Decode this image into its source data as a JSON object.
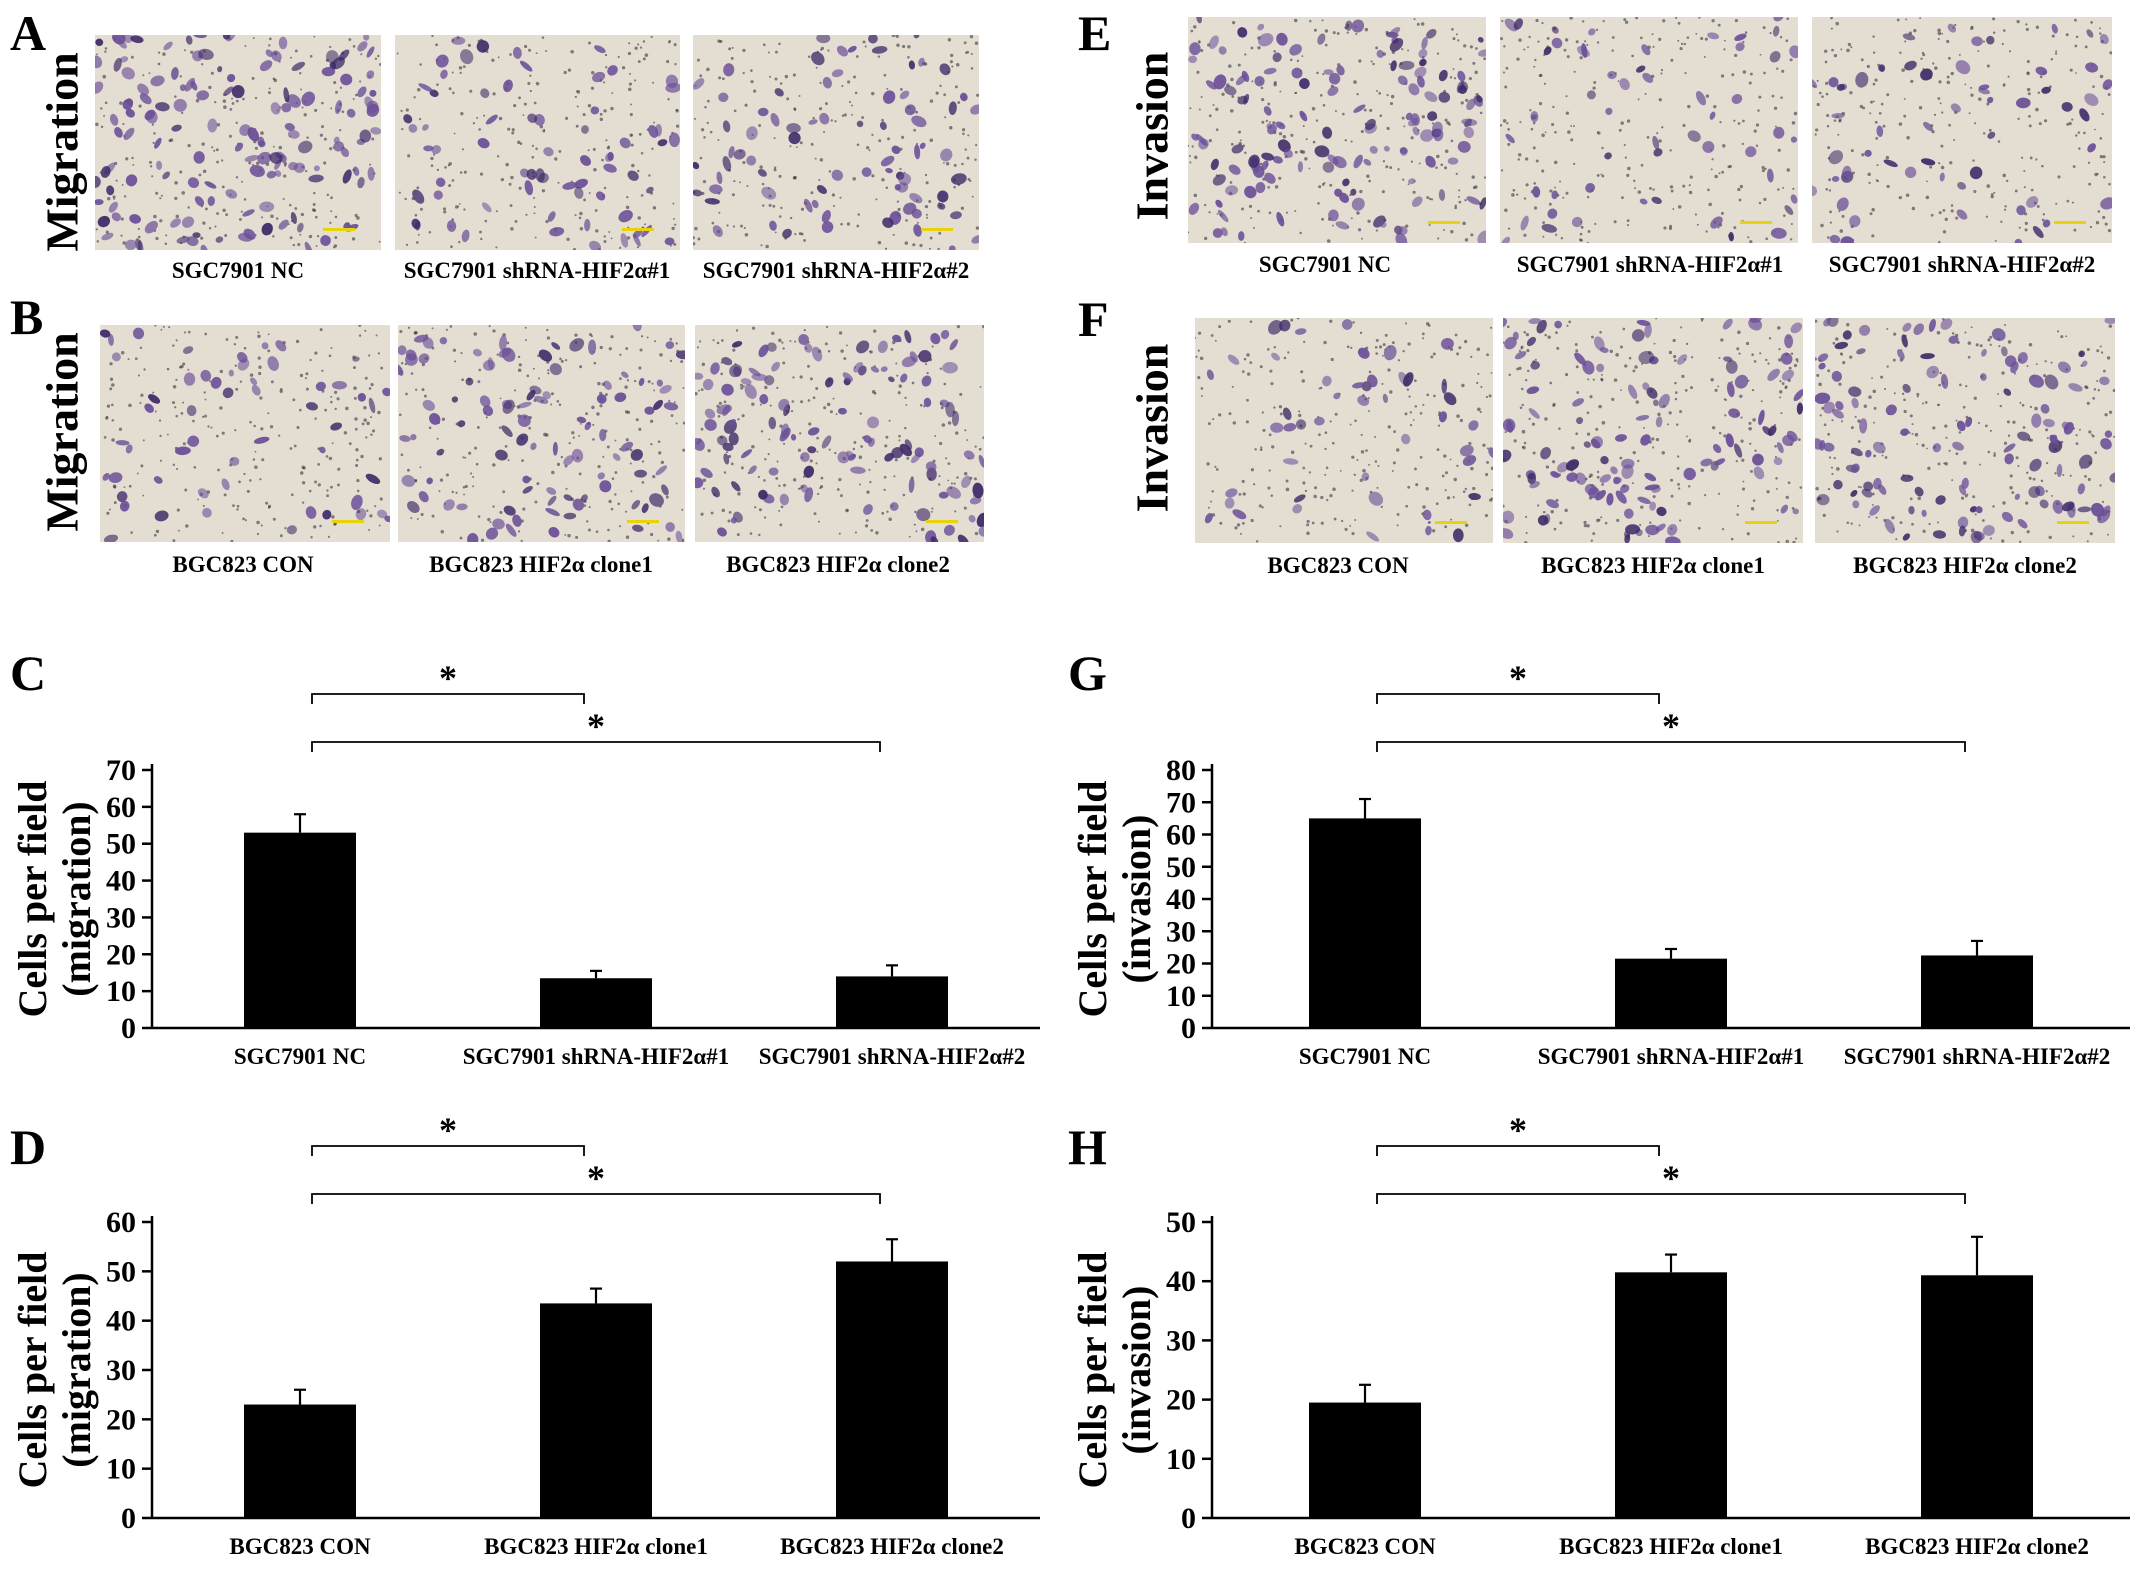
{
  "panel_letters": [
    "A",
    "B",
    "C",
    "D",
    "E",
    "F",
    "G",
    "H"
  ],
  "row_labels": {
    "A": "Migration",
    "B": "Migration",
    "E": "Invasion",
    "F": "Invasion"
  },
  "image_captions": {
    "A": [
      "SGC7901 NC",
      "SGC7901 shRNA-HIF2α#1",
      "SGC7901 shRNA-HIF2α#2"
    ],
    "B": [
      "BGC823 CON",
      "BGC823 HIF2α clone1",
      "BGC823 HIF2α clone2"
    ],
    "E": [
      "SGC7901 NC",
      "SGC7901 shRNA-HIF2α#1",
      "SGC7901 shRNA-HIF2α#2"
    ],
    "F": [
      "BGC823 CON",
      "BGC823 HIF2α clone1",
      "BGC823 HIF2α clone2"
    ]
  },
  "colors": {
    "bar": "#000000",
    "stain": "#6b4f98",
    "stain_dark": "#3f2a68",
    "background": "#e3ddd2",
    "scale_bar": "#e8d20a"
  },
  "chart_data": [
    {
      "panel": "C",
      "type": "bar",
      "categories": [
        "SGC7901 NC",
        "SGC7901 shRNA-HIF2α#1",
        "SGC7901 shRNA-HIF2α#2"
      ],
      "values": [
        53,
        13.5,
        14
      ],
      "errors": [
        5,
        2,
        3
      ],
      "ylabel": [
        "Cells per field",
        "(migration)"
      ],
      "ylim": [
        0,
        70
      ],
      "yticks": [
        0,
        10,
        20,
        30,
        40,
        50,
        60,
        70
      ],
      "significance": [
        {
          "from": 0,
          "to": 1,
          "label": "*"
        },
        {
          "from": 0,
          "to": 2,
          "label": "*"
        }
      ]
    },
    {
      "panel": "D",
      "type": "bar",
      "categories": [
        "BGC823 CON",
        "BGC823 HIF2α clone1",
        "BGC823 HIF2α clone2"
      ],
      "values": [
        23,
        43.5,
        52
      ],
      "errors": [
        3,
        3,
        4.5
      ],
      "ylabel": [
        "Cells per field",
        "(migration)"
      ],
      "ylim": [
        0,
        60
      ],
      "yticks": [
        0,
        10,
        20,
        30,
        40,
        50,
        60
      ],
      "significance": [
        {
          "from": 0,
          "to": 1,
          "label": "*"
        },
        {
          "from": 0,
          "to": 2,
          "label": "*"
        }
      ]
    },
    {
      "panel": "G",
      "type": "bar",
      "categories": [
        "SGC7901 NC",
        "SGC7901 shRNA-HIF2α#1",
        "SGC7901 shRNA-HIF2α#2"
      ],
      "values": [
        65,
        21.5,
        22.5
      ],
      "errors": [
        6,
        3,
        4.5
      ],
      "ylabel": [
        "Cells per field",
        "(invasion)"
      ],
      "ylim": [
        0,
        80
      ],
      "yticks": [
        0,
        10,
        20,
        30,
        40,
        50,
        60,
        70,
        80
      ],
      "significance": [
        {
          "from": 0,
          "to": 1,
          "label": "*"
        },
        {
          "from": 0,
          "to": 2,
          "label": "*"
        }
      ]
    },
    {
      "panel": "H",
      "type": "bar",
      "categories": [
        "BGC823 CON",
        "BGC823 HIF2α clone1",
        "BGC823 HIF2α clone2"
      ],
      "values": [
        19.5,
        41.5,
        41
      ],
      "errors": [
        3,
        3,
        6.5
      ],
      "ylabel": [
        "Cells per field",
        "(invasion)"
      ],
      "ylim": [
        0,
        50
      ],
      "yticks": [
        0,
        10,
        20,
        30,
        40,
        50
      ],
      "significance": [
        {
          "from": 0,
          "to": 1,
          "label": "*"
        },
        {
          "from": 0,
          "to": 2,
          "label": "*"
        }
      ]
    }
  ]
}
